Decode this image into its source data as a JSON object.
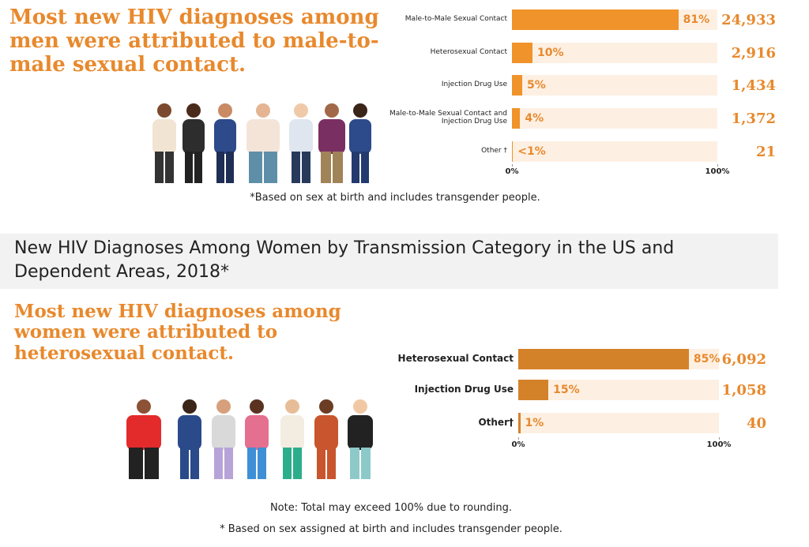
{
  "section_title": "New HIV Diagnoses Among Women by Transmission Category in the US and Dependent Areas, 2018*",
  "chart_data": [
    {
      "type": "bar",
      "orientation": "horizontal",
      "title": "Most new HIV diagnoses among men were attributed to male-to-male sexual contact.",
      "categories": [
        "Male-to-Male Sexual Contact",
        "Heterosexual Contact",
        "Injection Drug Use",
        "Male-to-Male Sexual Contact and Injection Drug Use",
        "Other †"
      ],
      "values": [
        81,
        10,
        5,
        4,
        0.5
      ],
      "value_labels": [
        "81%",
        "10%",
        "5%",
        "4%",
        "<1%"
      ],
      "counts": [
        "24,933",
        "2,916",
        "1,434",
        "1,372",
        "21"
      ],
      "color": "#f0932b",
      "xlim": [
        0,
        100
      ],
      "xticks": [
        {
          "value": 0,
          "label": "0%"
        },
        {
          "value": 100,
          "label": "100%"
        }
      ],
      "notes": [
        "*Based on sex at birth and includes transgender people."
      ]
    },
    {
      "type": "bar",
      "orientation": "horizontal",
      "title": "Most new HIV diagnoses among women were attributed to heterosexual contact.",
      "categories": [
        "Heterosexual Contact",
        "Injection Drug Use",
        "Other†"
      ],
      "values": [
        85,
        15,
        1
      ],
      "value_labels": [
        "85%",
        "15%",
        "1%"
      ],
      "counts": [
        "6,092",
        "1,058",
        "40"
      ],
      "color": "#d4822a",
      "xlim": [
        0,
        100
      ],
      "xticks": [
        {
          "value": 0,
          "label": "0%"
        },
        {
          "value": 100,
          "label": "100%"
        }
      ],
      "notes": [
        "Note: Total may exceed 100% due to rounding.",
        "* Based on sex assigned at birth and includes transgender people."
      ]
    }
  ]
}
